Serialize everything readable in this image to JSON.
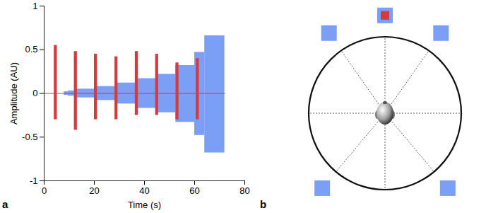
{
  "chart_data": {
    "type": "area",
    "panel_label": "a",
    "x_label": "Time (s)",
    "y_label": "Amplitude (AU)",
    "xlim": [
      0,
      80
    ],
    "xticks": [
      0,
      20,
      40,
      60,
      80
    ],
    "ylim": [
      -1,
      1
    ],
    "yticks": [
      -1,
      -0.5,
      0,
      0.5,
      1
    ],
    "grid": false,
    "series": [
      {
        "color": "#7b9ff5",
        "segments": [
          {
            "start": 8,
            "end": 9.5,
            "max": 0.02,
            "min": -0.02
          },
          {
            "start": 9.5,
            "end": 13,
            "max": 0.03,
            "min": -0.03
          },
          {
            "start": 13,
            "end": 20.5,
            "max": 0.05,
            "min": -0.05
          },
          {
            "start": 20.5,
            "end": 28.5,
            "max": 0.08,
            "min": -0.08
          },
          {
            "start": 28.5,
            "end": 36.5,
            "max": 0.12,
            "min": -0.12
          },
          {
            "start": 36.5,
            "end": 44.5,
            "max": 0.17,
            "min": -0.17
          },
          {
            "start": 44.5,
            "end": 52.5,
            "max": 0.22,
            "min": -0.22
          },
          {
            "start": 52.5,
            "end": 60,
            "max": 0.32,
            "min": -0.33
          },
          {
            "start": 60,
            "end": 64,
            "max": 0.47,
            "min": -0.48
          },
          {
            "start": 64,
            "end": 72,
            "max": 0.66,
            "min": -0.68
          }
        ]
      },
      {
        "color": "#d43b3b",
        "baseline": {
          "x": [
            0,
            72
          ],
          "y": 0
        },
        "segments": [
          {
            "start": 4,
            "end": 5.2,
            "max": 0.55,
            "min": -0.3
          },
          {
            "start": 12,
            "end": 13.2,
            "max": 0.48,
            "min": -0.42
          },
          {
            "start": 20,
            "end": 21.2,
            "max": 0.45,
            "min": -0.3
          },
          {
            "start": 28.2,
            "end": 29.4,
            "max": 0.42,
            "min": -0.3
          },
          {
            "start": 36.3,
            "end": 37.5,
            "max": 0.48,
            "min": -0.25
          },
          {
            "start": 44.4,
            "end": 45.6,
            "max": 0.45,
            "min": -0.25
          },
          {
            "start": 52.5,
            "end": 53.7,
            "max": 0.35,
            "min": -0.3
          },
          {
            "start": 60.6,
            "end": 61.8,
            "max": 0.4,
            "min": -0.3
          }
        ]
      }
    ]
  },
  "diagram": {
    "panel_label": "b",
    "speaker_color": "#7b9ff5",
    "target_color": "#d43b3b",
    "speakers": [
      {
        "angle": 0,
        "target": true
      },
      {
        "angle": -35,
        "target": false
      },
      {
        "angle": 35,
        "target": false
      },
      {
        "angle": -140,
        "target": false
      },
      {
        "angle": 140,
        "target": false
      }
    ]
  }
}
